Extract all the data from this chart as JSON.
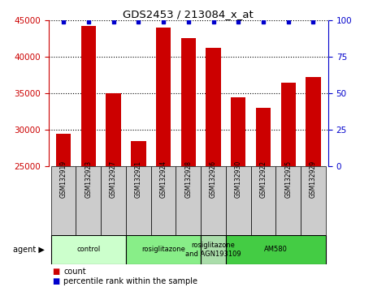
{
  "title": "GDS2453 / 213084_x_at",
  "samples": [
    "GSM132919",
    "GSM132923",
    "GSM132927",
    "GSM132921",
    "GSM132924",
    "GSM132928",
    "GSM132926",
    "GSM132930",
    "GSM132922",
    "GSM132925",
    "GSM132929"
  ],
  "counts": [
    29500,
    44200,
    35000,
    28500,
    44000,
    42500,
    41200,
    34500,
    33000,
    36500,
    37200
  ],
  "percentile_values": [
    99,
    99,
    99,
    99,
    99,
    99,
    99,
    99,
    99,
    99,
    99
  ],
  "ylim_left": [
    25000,
    45000
  ],
  "ylim_right": [
    0,
    100
  ],
  "bar_color": "#cc0000",
  "dot_color": "#0000cc",
  "groups": [
    {
      "label": "control",
      "start": 0,
      "end": 3,
      "color": "#ccffcc"
    },
    {
      "label": "rosiglitazone",
      "start": 3,
      "end": 6,
      "color": "#88ee88"
    },
    {
      "label": "rosiglitazone\nand AGN193109",
      "start": 6,
      "end": 7,
      "color": "#aaddaa"
    },
    {
      "label": "AM580",
      "start": 7,
      "end": 11,
      "color": "#44cc44"
    }
  ],
  "legend_count_color": "#cc0000",
  "legend_dot_color": "#0000cc",
  "bg_color": "#ffffff",
  "yticks_left": [
    25000,
    30000,
    35000,
    40000,
    45000
  ],
  "yticks_right": [
    0,
    25,
    50,
    75,
    100
  ],
  "left_axis_color": "#cc0000",
  "right_axis_color": "#0000cc",
  "sample_box_color": "#cccccc",
  "agent_label": "agent"
}
